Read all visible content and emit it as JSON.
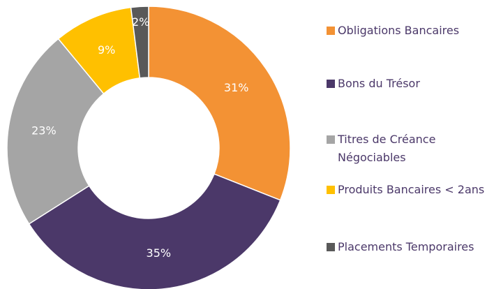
{
  "chart_data": {
    "type": "donut",
    "categories": [
      "Obligations Bancaires",
      "Bons du Trésor",
      "Titres de Créance Négociables",
      "Produits Bancaires < 2ans",
      "Placements Temporaires"
    ],
    "values": [
      31,
      35,
      23,
      9,
      2
    ],
    "value_labels": [
      "31%",
      "35%",
      "23%",
      "9%",
      "2%"
    ],
    "colors": [
      "#f39234",
      "#4b3869",
      "#a5a5a5",
      "#ffc000",
      "#595959"
    ],
    "legend": "right"
  }
}
